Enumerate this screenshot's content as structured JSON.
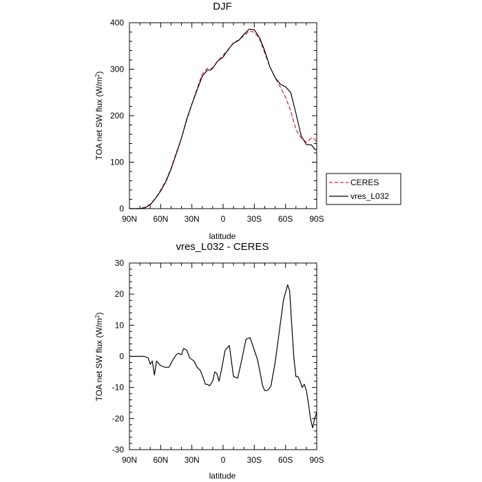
{
  "chart_data": [
    {
      "type": "line",
      "title": "DJF",
      "xlabel": "latitude",
      "ylabel": "TOA net SW flux (W/m",
      "ylabel_sup": "2",
      "ylabel_end": ")",
      "xlim": [
        -90,
        90
      ],
      "ylim": [
        0,
        400
      ],
      "x_ticks": [
        {
          "value": -90,
          "label": "90N"
        },
        {
          "value": -60,
          "label": "60N"
        },
        {
          "value": -30,
          "label": "30N"
        },
        {
          "value": 0,
          "label": "0"
        },
        {
          "value": 30,
          "label": "30S"
        },
        {
          "value": 60,
          "label": "60S"
        },
        {
          "value": 90,
          "label": "90S"
        }
      ],
      "y_ticks": [
        0,
        100,
        200,
        300,
        400
      ],
      "grid": false,
      "legend": "outside-right",
      "series": [
        {
          "name": "CERES",
          "color": "#e41a1c",
          "dash": true,
          "x": [
            -90,
            -85,
            -80,
            -75,
            -70,
            -65,
            -60,
            -55,
            -50,
            -45,
            -40,
            -35,
            -30,
            -25,
            -20,
            -15,
            -12,
            -10,
            -5,
            0,
            5,
            10,
            15,
            20,
            25,
            30,
            35,
            40,
            45,
            50,
            55,
            60,
            65,
            70,
            75,
            80,
            85,
            88,
            90
          ],
          "y": [
            0,
            0,
            0,
            3,
            10,
            22,
            40,
            60,
            87,
            120,
            152,
            190,
            225,
            258,
            290,
            302,
            301,
            303,
            318,
            330,
            342,
            357,
            363,
            372,
            382,
            380,
            365,
            335,
            305,
            282,
            262,
            240,
            210,
            170,
            152,
            143,
            152,
            150,
            142
          ]
        },
        {
          "name": "vres_L032",
          "color": "#000000",
          "dash": false,
          "x": [
            -90,
            -85,
            -80,
            -75,
            -70,
            -65,
            -60,
            -55,
            -50,
            -45,
            -40,
            -35,
            -30,
            -25,
            -20,
            -15,
            -12,
            -10,
            -5,
            0,
            5,
            10,
            15,
            20,
            25,
            30,
            35,
            40,
            45,
            50,
            55,
            60,
            65,
            70,
            75,
            80,
            85,
            88,
            90
          ],
          "y": [
            0,
            0,
            0,
            2,
            8,
            22,
            38,
            58,
            85,
            118,
            152,
            192,
            225,
            255,
            285,
            298,
            298,
            302,
            318,
            326,
            343,
            356,
            362,
            375,
            386,
            385,
            368,
            340,
            305,
            282,
            268,
            262,
            250,
            205,
            157,
            138,
            137,
            128,
            126
          ]
        }
      ]
    },
    {
      "type": "line",
      "title": "vres_L032 - CERES",
      "xlabel": "latitude",
      "ylabel": "TOA net SW flux (W/m",
      "ylabel_sup": "2",
      "ylabel_end": ")",
      "xlim": [
        -90,
        90
      ],
      "ylim": [
        -30,
        30
      ],
      "x_ticks": [
        {
          "value": -90,
          "label": "90N"
        },
        {
          "value": -60,
          "label": "60N"
        },
        {
          "value": -30,
          "label": "30N"
        },
        {
          "value": 0,
          "label": "0"
        },
        {
          "value": 30,
          "label": "30S"
        },
        {
          "value": 60,
          "label": "60S"
        },
        {
          "value": 90,
          "label": "90S"
        }
      ],
      "y_ticks": [
        -30,
        -20,
        -10,
        0,
        10,
        20,
        30
      ],
      "grid": false,
      "series": [
        {
          "color": "#000000",
          "dash": false,
          "x": [
            -90,
            -85,
            -80,
            -76,
            -72,
            -70,
            -68,
            -66,
            -64,
            -60,
            -56,
            -52,
            -48,
            -45,
            -43,
            -40,
            -38,
            -35,
            -32,
            -28,
            -25,
            -22,
            -19,
            -17,
            -15,
            -13,
            -10,
            -8,
            -6,
            -4,
            -2,
            2,
            6,
            10,
            14,
            16,
            18,
            22,
            26,
            28,
            30,
            33,
            36,
            38,
            40,
            42,
            44,
            46,
            50,
            54,
            58,
            62,
            64,
            66,
            68,
            70,
            72,
            74,
            76,
            78,
            80,
            82,
            84,
            86,
            88,
            90
          ],
          "y": [
            0,
            0,
            0,
            0,
            -0.5,
            -2.5,
            -1.5,
            -6,
            -1.5,
            -3,
            -3.5,
            -3.5,
            -1,
            0.5,
            1,
            0.5,
            2.5,
            2,
            -0.5,
            -1.5,
            -3.5,
            -4.5,
            -7,
            -9,
            -9,
            -9.5,
            -8,
            -5,
            -5.5,
            -8,
            -5,
            2,
            3.5,
            -6.5,
            -7,
            -4,
            -1,
            5.5,
            6,
            4,
            2,
            -1,
            -6,
            -9.5,
            -11,
            -11,
            -10.5,
            -9.5,
            -2,
            8,
            18,
            23,
            21,
            10,
            -0.5,
            -6.5,
            -6.5,
            -8,
            -10,
            -9,
            -11,
            -15,
            -20,
            -23,
            -20,
            -18
          ]
        }
      ]
    }
  ]
}
